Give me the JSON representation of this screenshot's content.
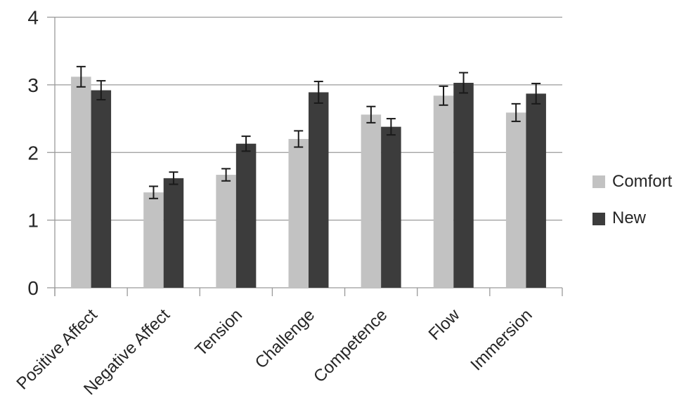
{
  "chart_data": {
    "type": "bar",
    "title": "",
    "xlabel": "",
    "ylabel": "",
    "categories": [
      "Positive Affect",
      "Negative Affect",
      "Tension",
      "Challenge",
      "Competence",
      "Flow",
      "Immersion"
    ],
    "series": [
      {
        "name": "Comfort",
        "color": "#c2c2c2",
        "values": [
          3.12,
          1.41,
          1.67,
          2.2,
          2.56,
          2.84,
          2.59
        ],
        "errors": [
          0.15,
          0.09,
          0.09,
          0.12,
          0.12,
          0.14,
          0.13
        ]
      },
      {
        "name": "New",
        "color": "#3c3c3c",
        "values": [
          2.92,
          1.62,
          2.13,
          2.89,
          2.38,
          3.03,
          2.87
        ],
        "errors": [
          0.14,
          0.09,
          0.11,
          0.16,
          0.12,
          0.15,
          0.15
        ]
      }
    ],
    "ylim": [
      0,
      4
    ],
    "yticks": [
      "0",
      "1",
      "2",
      "3",
      "4"
    ],
    "grid": true,
    "error_bars": true,
    "legend_position": "right",
    "x_label_rotation_deg": -45,
    "colors": {
      "gridline": "#9a9a9a",
      "axis": "#9a9a9a",
      "error_bar": "#1a1a1a",
      "text": "#262626"
    }
  }
}
